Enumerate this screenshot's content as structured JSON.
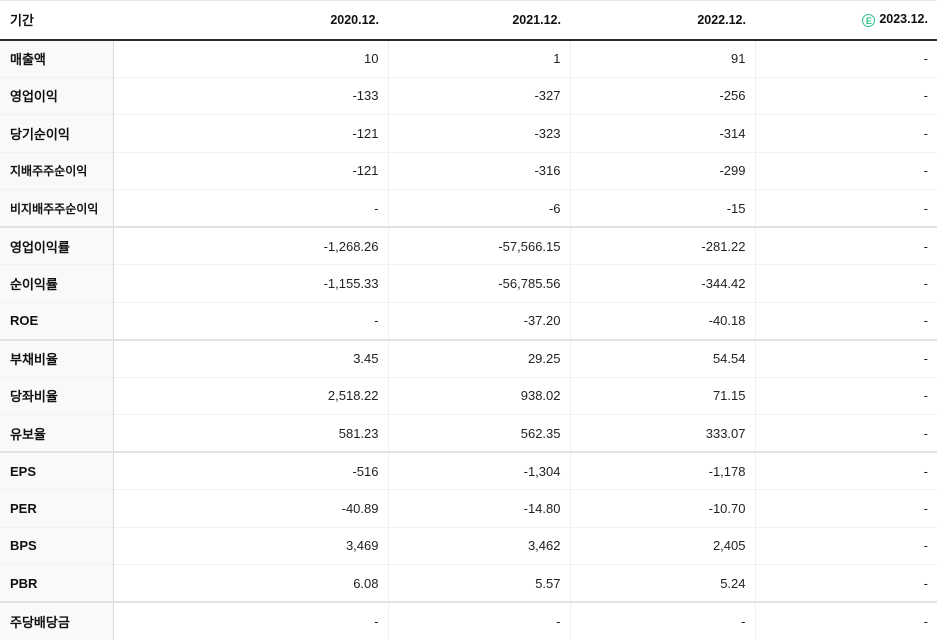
{
  "header": {
    "period_label": "기간",
    "columns": [
      "2020.12.",
      "2021.12.",
      "2022.12.",
      "2023.12."
    ],
    "estimate_badge": "E",
    "estimate_color": "#2bc285"
  },
  "colors": {
    "negative_value": "#4377e0",
    "header_rule": "#2b2b2b",
    "label_background": "#f9f9f9"
  },
  "rows": [
    {
      "label": "매출액",
      "sub": false,
      "group_start": false,
      "values": [
        "10",
        "1",
        "91",
        "-"
      ]
    },
    {
      "label": "영업이익",
      "sub": false,
      "group_start": false,
      "values": [
        "-133",
        "-327",
        "-256",
        "-"
      ]
    },
    {
      "label": "당기순이익",
      "sub": false,
      "group_start": false,
      "values": [
        "-121",
        "-323",
        "-314",
        "-"
      ]
    },
    {
      "label": "지배주주순이익",
      "sub": true,
      "group_start": false,
      "values": [
        "-121",
        "-316",
        "-299",
        "-"
      ]
    },
    {
      "label": "비지배주주순이익",
      "sub": true,
      "group_start": false,
      "values": [
        "-",
        "-6",
        "-15",
        "-"
      ]
    },
    {
      "label": "영업이익률",
      "sub": false,
      "group_start": true,
      "values": [
        "-1,268.26",
        "-57,566.15",
        "-281.22",
        "-"
      ]
    },
    {
      "label": "순이익률",
      "sub": false,
      "group_start": false,
      "values": [
        "-1,155.33",
        "-56,785.56",
        "-344.42",
        "-"
      ]
    },
    {
      "label": "ROE",
      "sub": false,
      "group_start": false,
      "values": [
        "-",
        "-37.20",
        "-40.18",
        "-"
      ]
    },
    {
      "label": "부채비율",
      "sub": false,
      "group_start": true,
      "values": [
        "3.45",
        "29.25",
        "54.54",
        "-"
      ]
    },
    {
      "label": "당좌비율",
      "sub": false,
      "group_start": false,
      "values": [
        "2,518.22",
        "938.02",
        "71.15",
        "-"
      ]
    },
    {
      "label": "유보율",
      "sub": false,
      "group_start": false,
      "values": [
        "581.23",
        "562.35",
        "333.07",
        "-"
      ]
    },
    {
      "label": "EPS",
      "sub": false,
      "group_start": true,
      "values": [
        "-516",
        "-1,304",
        "-1,178",
        "-"
      ]
    },
    {
      "label": "PER",
      "sub": false,
      "group_start": false,
      "values": [
        "-40.89",
        "-14.80",
        "-10.70",
        "-"
      ]
    },
    {
      "label": "BPS",
      "sub": false,
      "group_start": false,
      "values": [
        "3,469",
        "3,462",
        "2,405",
        "-"
      ]
    },
    {
      "label": "PBR",
      "sub": false,
      "group_start": false,
      "values": [
        "6.08",
        "5.57",
        "5.24",
        "-"
      ]
    },
    {
      "label": "주당배당금",
      "sub": false,
      "group_start": true,
      "values": [
        "-",
        "-",
        "-",
        "-"
      ]
    }
  ]
}
